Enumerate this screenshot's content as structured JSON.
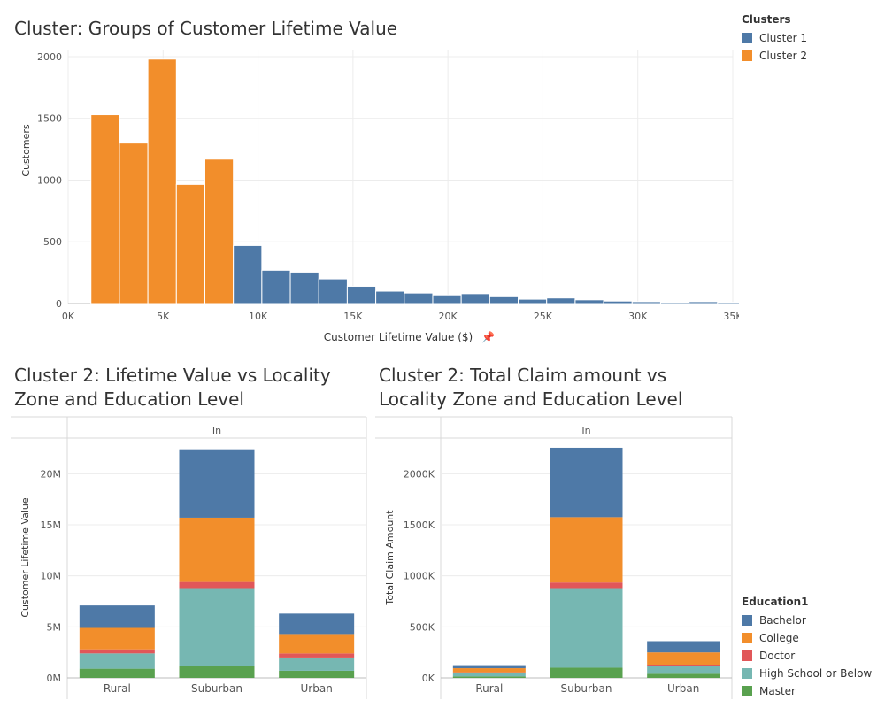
{
  "colors": {
    "cluster_1": "#4e79a7",
    "cluster_2": "#f28e2b",
    "bachelor": "#4e79a7",
    "college": "#f28e2b",
    "doctor": "#e15759",
    "high_school": "#76b7b2",
    "master": "#59a14f"
  },
  "legend_clusters": {
    "title": "Clusters",
    "items": [
      {
        "label": "Cluster 1",
        "color": "#4e79a7"
      },
      {
        "label": "Cluster 2",
        "color": "#f28e2b"
      }
    ]
  },
  "legend_education": {
    "title": "Education1",
    "items": [
      {
        "label": "Bachelor",
        "color": "#4e79a7"
      },
      {
        "label": "College",
        "color": "#f28e2b"
      },
      {
        "label": "Doctor",
        "color": "#e15759"
      },
      {
        "label": "High School or Below",
        "color": "#76b7b2"
      },
      {
        "label": "Master",
        "color": "#59a14f"
      }
    ]
  },
  "chart_data": [
    {
      "type": "bar",
      "title": "Cluster: Groups of Customer Lifetime Value",
      "xlabel": "Customer Lifetime Value ($)",
      "ylabel": "Customers",
      "x_ticks": [
        "0K",
        "5K",
        "10K",
        "15K",
        "20K",
        "25K",
        "30K",
        "35K"
      ],
      "y_ticks": [
        "0",
        "500",
        "1000",
        "1500",
        "2000"
      ],
      "xlim": [
        0,
        35000
      ],
      "ylim": [
        0,
        2050
      ],
      "bin_width": 1500,
      "grid": true,
      "legend": "right",
      "bins": [
        {
          "start": 1200,
          "count": 1530,
          "cluster": "Cluster 2"
        },
        {
          "start": 2700,
          "count": 1300,
          "cluster": "Cluster 2"
        },
        {
          "start": 4200,
          "count": 1980,
          "cluster": "Cluster 2"
        },
        {
          "start": 5700,
          "count": 965,
          "cluster": "Cluster 2"
        },
        {
          "start": 7200,
          "count": 1170,
          "cluster": "Cluster 2"
        },
        {
          "start": 8700,
          "count": 470,
          "cluster": "Cluster 1"
        },
        {
          "start": 10200,
          "count": 270,
          "cluster": "Cluster 1"
        },
        {
          "start": 11700,
          "count": 255,
          "cluster": "Cluster 1"
        },
        {
          "start": 13200,
          "count": 200,
          "cluster": "Cluster 1"
        },
        {
          "start": 14700,
          "count": 140,
          "cluster": "Cluster 1"
        },
        {
          "start": 16200,
          "count": 100,
          "cluster": "Cluster 1"
        },
        {
          "start": 17700,
          "count": 85,
          "cluster": "Cluster 1"
        },
        {
          "start": 19200,
          "count": 70,
          "cluster": "Cluster 1"
        },
        {
          "start": 20700,
          "count": 80,
          "cluster": "Cluster 1"
        },
        {
          "start": 22200,
          "count": 55,
          "cluster": "Cluster 1"
        },
        {
          "start": 23700,
          "count": 35,
          "cluster": "Cluster 1"
        },
        {
          "start": 25200,
          "count": 45,
          "cluster": "Cluster 1"
        },
        {
          "start": 26700,
          "count": 30,
          "cluster": "Cluster 1"
        },
        {
          "start": 28200,
          "count": 20,
          "cluster": "Cluster 1"
        },
        {
          "start": 29700,
          "count": 15,
          "cluster": "Cluster 1"
        },
        {
          "start": 31200,
          "count": 10,
          "cluster": "Cluster 1"
        },
        {
          "start": 32700,
          "count": 15,
          "cluster": "Cluster 1"
        },
        {
          "start": 34200,
          "count": 10,
          "cluster": "Cluster 1"
        }
      ]
    },
    {
      "type": "bar",
      "stacked": true,
      "title": "Cluster 2: Lifetime Value vs Locality Zone and Education Level",
      "column_header": "In",
      "ylabel": "Customer Lifetime Value",
      "categories": [
        "Rural",
        "Suburban",
        "Urban"
      ],
      "y_ticks": [
        "0M",
        "5M",
        "10M",
        "15M",
        "20M"
      ],
      "ylim": [
        0,
        23500000
      ],
      "grid": true,
      "series": [
        {
          "name": "Master",
          "values": [
            900000,
            1200000,
            700000
          ]
        },
        {
          "name": "High School or Below",
          "values": [
            1500000,
            7600000,
            1300000
          ]
        },
        {
          "name": "Doctor",
          "values": [
            400000,
            600000,
            400000
          ]
        },
        {
          "name": "College",
          "values": [
            2100000,
            6300000,
            1900000
          ]
        },
        {
          "name": "Bachelor",
          "values": [
            2200000,
            6700000,
            2000000
          ]
        }
      ]
    },
    {
      "type": "bar",
      "stacked": true,
      "title": "Cluster 2: Total Claim amount vs Locality Zone and Education Level",
      "column_header": "In",
      "ylabel": "Total Claim Amount",
      "categories": [
        "Rural",
        "Suburban",
        "Urban"
      ],
      "y_ticks": [
        "0K",
        "500K",
        "1000K",
        "1500K",
        "2000K"
      ],
      "ylim": [
        0,
        2350000
      ],
      "grid": true,
      "series": [
        {
          "name": "Master",
          "values": [
            15000,
            100000,
            40000
          ]
        },
        {
          "name": "High School or Below",
          "values": [
            30000,
            780000,
            75000
          ]
        },
        {
          "name": "Doctor",
          "values": [
            10000,
            55000,
            15000
          ]
        },
        {
          "name": "College",
          "values": [
            40000,
            640000,
            120000
          ]
        },
        {
          "name": "Bachelor",
          "values": [
            30000,
            680000,
            110000
          ]
        }
      ]
    }
  ]
}
